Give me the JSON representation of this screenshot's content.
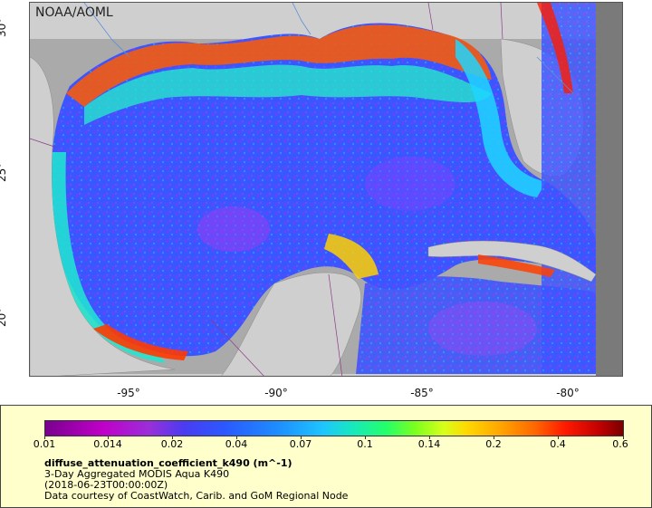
{
  "map": {
    "brand": "NOAA/AOML",
    "x_ticks": [
      "-95°",
      "-90°",
      "-85°",
      "-80°"
    ],
    "y_ticks": [
      "30°",
      "25°",
      "20°"
    ]
  },
  "legend": {
    "tick_labels": [
      "0.01",
      "0.014",
      "0.02",
      "0.04",
      "0.07",
      "0.1",
      "0.14",
      "0.2",
      "0.4",
      "0.6"
    ],
    "variable": "diffuse_attenuation_coefficient_k490 (m^-1)",
    "description": "3-Day Aggregated MODIS Aqua K490",
    "timestamp": "(2018-06-23T00:00:00Z)",
    "credit": "Data courtesy of CoastWatch, Carib. and GoM Regional Node"
  }
}
